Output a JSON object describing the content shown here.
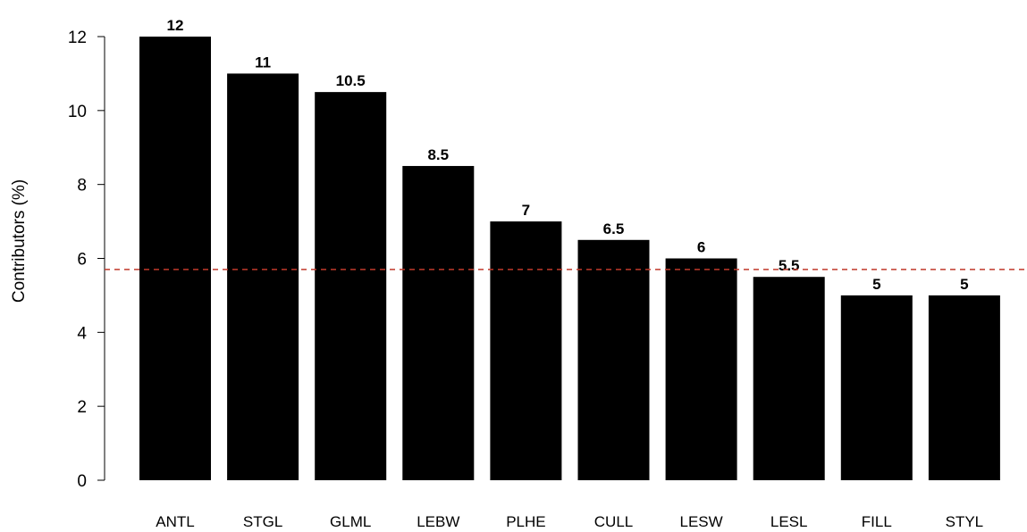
{
  "chart_data": {
    "type": "bar",
    "categories": [
      "ANTL",
      "STGL",
      "GLML",
      "LEBW",
      "PLHE",
      "CULL",
      "LESW",
      "LESL",
      "FILL",
      "STYL"
    ],
    "values": [
      12,
      11,
      10.5,
      8.5,
      7,
      6.5,
      6,
      5.5,
      5,
      5
    ],
    "value_labels": [
      "12",
      "11",
      "10.5",
      "8.5",
      "7",
      "6.5",
      "6",
      "5.5",
      "5",
      "5"
    ],
    "title": "",
    "xlabel": "",
    "ylabel": "Contributors (%)",
    "ylim": [
      0,
      12
    ],
    "yticks": [
      0,
      2,
      4,
      6,
      8,
      10,
      12
    ],
    "ytick_labels": [
      "0",
      "2",
      "4",
      "6",
      "8",
      "10",
      "12"
    ],
    "reference_line": {
      "value": 5.7,
      "style": "dashed",
      "color": "#c0392b"
    },
    "bar_color": "#000000",
    "grid": false,
    "legend": "none"
  }
}
